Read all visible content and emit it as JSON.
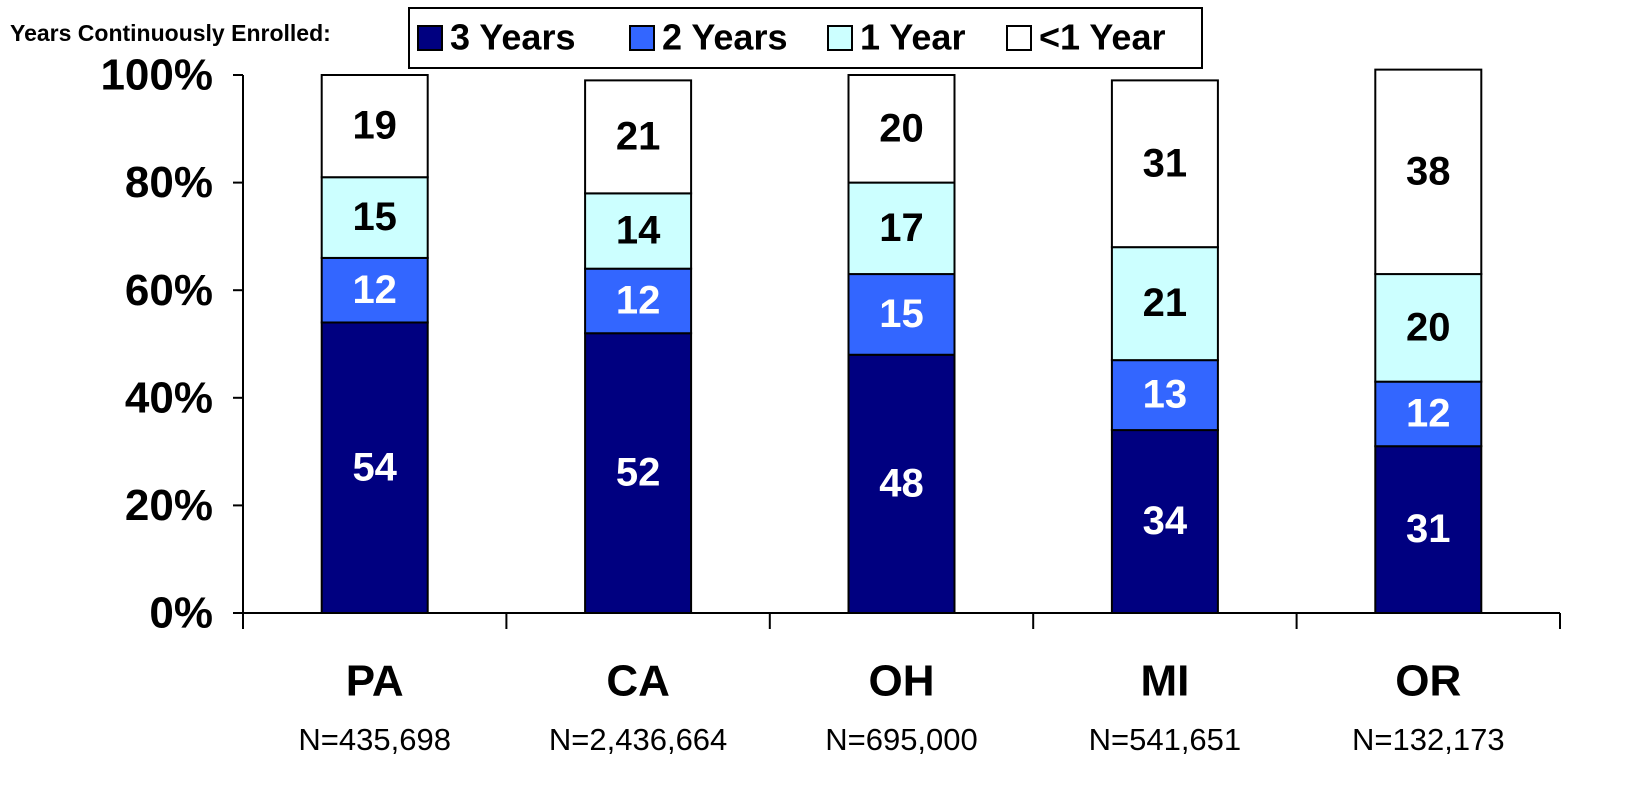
{
  "chart_data": {
    "type": "stacked_bar",
    "legend_title": "Years Continuously Enrolled:",
    "categories": [
      "PA",
      "CA",
      "OH",
      "MI",
      "OR"
    ],
    "sublabels": [
      "N=435,698",
      "N=2,436,664",
      "N=695,000",
      "N=541,651",
      "N=132,173"
    ],
    "series": [
      {
        "name": "3 Years",
        "color": "#000080",
        "values": [
          54,
          52,
          48,
          34,
          31
        ]
      },
      {
        "name": "2 Years",
        "color": "#3366ff",
        "values": [
          12,
          12,
          15,
          13,
          12
        ]
      },
      {
        "name": "1 Year",
        "color": "#ccffff",
        "values": [
          15,
          14,
          17,
          21,
          20
        ]
      },
      {
        "name": "<1 Year",
        "color": "#ffffff",
        "values": [
          19,
          21,
          20,
          31,
          38
        ]
      }
    ],
    "ylim": [
      0,
      100
    ],
    "yticks": [
      {
        "value": 0,
        "label": "0%"
      },
      {
        "value": 20,
        "label": "20%"
      },
      {
        "value": 40,
        "label": "40%"
      },
      {
        "value": 60,
        "label": "60%"
      },
      {
        "value": 80,
        "label": "80%"
      },
      {
        "value": 100,
        "label": "100%"
      }
    ],
    "legend": "top"
  }
}
